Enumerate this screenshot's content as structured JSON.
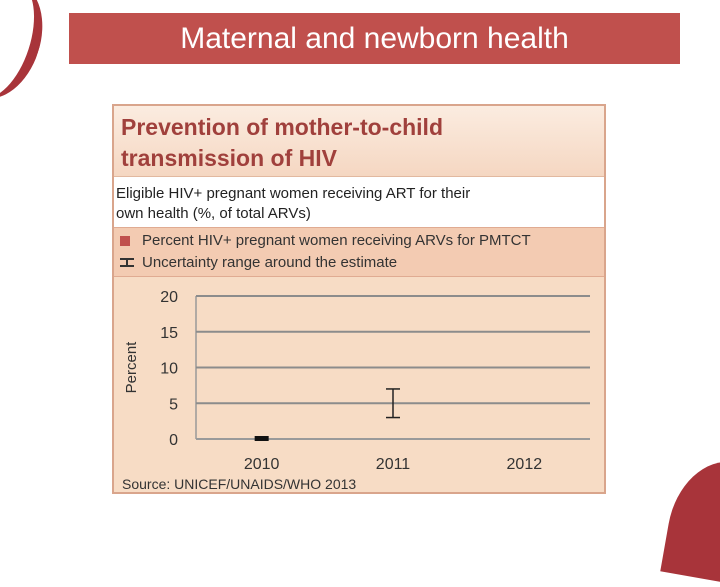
{
  "slide_title": "Maternal and newborn health",
  "panel_title": "Prevention of mother-to-child transmission of HIV",
  "note": "Eligible HIV+ pregnant women receiving ART for their own health (%, of total ARVs)",
  "legend": {
    "point": "Percent HIV+ pregnant women receiving ARVs for PMTCT",
    "range": "Uncertainty range around the estimate"
  },
  "source": "Source: UNICEF/UNAIDS/WHO 2013",
  "colors": {
    "accent": "#c0504d",
    "panel": "#f7dcc5",
    "grid": "#8c8c8c"
  },
  "chart_data": {
    "type": "scatter",
    "title": "",
    "xlabel": "",
    "ylabel": "Percent",
    "categories": [
      "2010",
      "2011",
      "2012"
    ],
    "ylim": [
      0,
      20
    ],
    "yticks": [
      0,
      5,
      10,
      15,
      20
    ],
    "series": [
      {
        "name": "Percent HIV+ pregnant women receiving ARVs for PMTCT",
        "values": [
          0,
          null,
          null
        ]
      }
    ],
    "uncertainty_ranges": [
      {
        "category": "2011",
        "low": 3,
        "high": 7
      }
    ],
    "grid": true,
    "legend_position": "top"
  }
}
